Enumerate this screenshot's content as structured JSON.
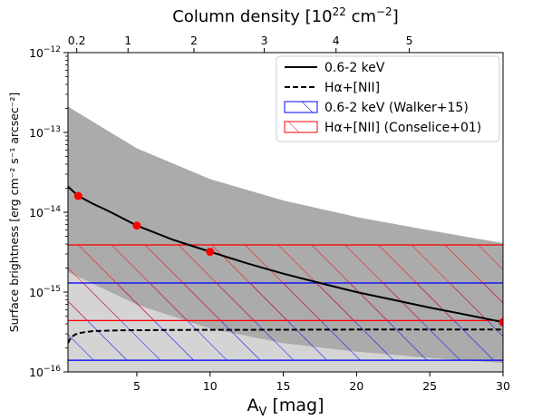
{
  "chart_data": {
    "type": "line",
    "xlabel": "A",
    "xlabel_sub": "V",
    "xlabel_unit": " [mag]",
    "xlim": [
      0.3,
      30
    ],
    "x_ticks": [
      5,
      10,
      15,
      20,
      25,
      30
    ],
    "x_tick_labels": [
      "5",
      "10",
      "15",
      "20",
      "25",
      "30"
    ],
    "ylabel": "Surface brightness [erg cm⁻² s⁻¹ arcsec⁻²]",
    "yscale": "log",
    "ylim": [
      1e-16,
      1e-12
    ],
    "y_ticks": [
      1e-16,
      1e-15,
      1e-14,
      1e-13,
      1e-12
    ],
    "y_tick_labels": [
      {
        "base": "10",
        "exp": "−16"
      },
      {
        "base": "10",
        "exp": "−15"
      },
      {
        "base": "10",
        "exp": "−14"
      },
      {
        "base": "10",
        "exp": "−13"
      },
      {
        "base": "10",
        "exp": "−12"
      }
    ],
    "top_axis": {
      "label_main": "Column density [10",
      "label_exp1": "22",
      "label_mid": " cm",
      "label_exp2": "−2",
      "label_end": "]",
      "ticks_av": [
        0.9,
        4.4,
        8.9,
        13.7,
        18.6,
        23.6
      ],
      "tick_labels": [
        "0.2",
        "1",
        "2",
        "3",
        "4",
        "5"
      ]
    },
    "grey_band": {
      "x": [
        0.3,
        5,
        10,
        15,
        20,
        25,
        30
      ],
      "upper": [
        2.1e-13,
        6.3e-14,
        2.6e-14,
        1.4e-14,
        8.7e-15,
        5.9e-15,
        4.1e-15
      ],
      "lower": [
        1.8e-15,
        7e-16,
        3.5e-16,
        2.3e-16,
        1.8e-16,
        1.5e-16,
        1.3e-16
      ]
    },
    "walker_band": {
      "name": "0.6-2 keV (Walker+15)",
      "low": 1.4e-16,
      "high": 1.3e-15,
      "color": "#0000ff"
    },
    "conselice_band": {
      "name": "Hα+[NII] (Conselice+01)",
      "low": 4.4e-16,
      "high": 3.9e-15,
      "color": "#ff0000"
    },
    "series": [
      {
        "name": "0.6-2 keV",
        "style": "solid",
        "color": "#000000",
        "x": [
          0.3,
          1,
          2,
          3,
          5,
          7.5,
          10,
          12.5,
          15,
          17.5,
          20,
          22.5,
          25,
          27.5,
          30
        ],
        "y": [
          2.1e-14,
          1.6e-14,
          1.28e-14,
          1.05e-14,
          6.8e-15,
          4.5e-15,
          3.2e-15,
          2.3e-15,
          1.7e-15,
          1.3e-15,
          1e-15,
          8e-16,
          6.4e-16,
          5.2e-16,
          4.2e-16
        ]
      },
      {
        "name": "Hα+[NII]",
        "style": "dashed",
        "color": "#000000",
        "x": [
          0.3,
          0.5,
          0.8,
          1.2,
          2,
          4,
          8,
          15,
          20,
          25,
          30
        ],
        "y": [
          2.3e-16,
          2.7e-16,
          2.95e-16,
          3.1e-16,
          3.25e-16,
          3.32e-16,
          3.36e-16,
          3.38e-16,
          3.39e-16,
          3.4e-16,
          3.4e-16
        ]
      }
    ],
    "points": {
      "x": [
        1,
        5,
        10,
        30
      ],
      "y": [
        1.6e-14,
        6.8e-15,
        3.2e-15,
        4.2e-16
      ],
      "color": "#ff0000"
    },
    "legend": {
      "placement": "top-right",
      "entries": [
        {
          "label": "0.6-2 keV",
          "kind": "solid-line"
        },
        {
          "label": "Hα+[NII]",
          "kind": "dashed-line"
        },
        {
          "label": "0.6-2 keV (Walker+15)",
          "kind": "blue-hatch"
        },
        {
          "label": "Hα+[NII] (Conselice+01)",
          "kind": "red-hatch"
        }
      ]
    },
    "colors": {
      "grey_band": "#ababab",
      "dark_region": "#8c8c8c",
      "light_region": "#d4d4d4",
      "point": "#ff0000"
    }
  }
}
